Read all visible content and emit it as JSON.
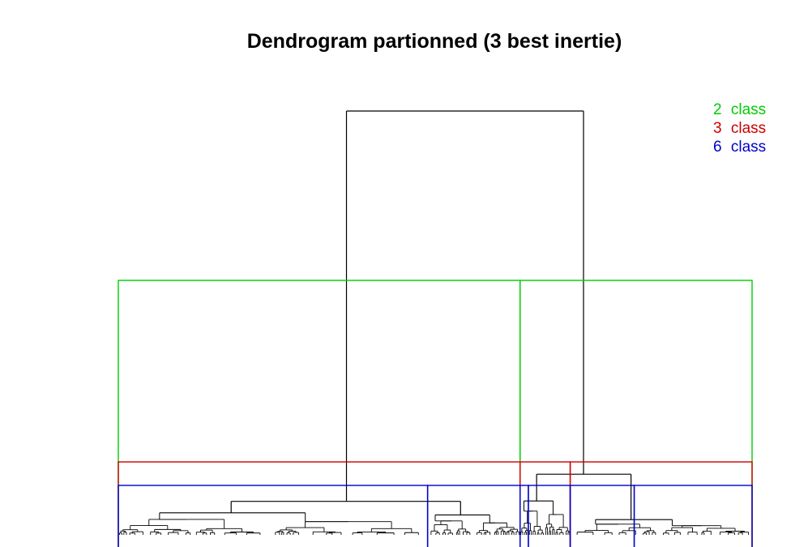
{
  "chart_data": {
    "type": "dendrogram",
    "title": "Dendrogram partionned (3 best inertie)",
    "legend": {
      "placement": "top-right",
      "entries": [
        {
          "k": "2",
          "label": "class",
          "color": "#00cc00"
        },
        {
          "k": "3",
          "label": "class",
          "color": "#cc0000"
        },
        {
          "k": "6",
          "label": "class",
          "color": "#0000cc"
        }
      ]
    },
    "partitions": [
      {
        "classes": 2,
        "cut_height": 0.36,
        "boundaries": [
          0,
          0.634,
          1
        ],
        "color": "#00cc00"
      },
      {
        "classes": 3,
        "cut_height": 0.05,
        "boundaries": [
          0,
          0.634,
          0.713,
          1
        ],
        "color": "#cc0000"
      },
      {
        "classes": 6,
        "cut_height": 0.0,
        "boundaries": [
          0,
          0.488,
          0.634,
          0.647,
          0.713,
          0.814,
          1
        ],
        "color": "#0000cc"
      }
    ],
    "merges": [
      {
        "left": 0.36,
        "right": 0.734,
        "height": 1.0
      },
      {
        "left": 0.178,
        "right": 0.54,
        "height": 0.079
      },
      {
        "left": 0.66,
        "right": 0.809,
        "height": 0.143
      },
      {
        "left": 0.065,
        "right": 0.295,
        "height": 0.052
      },
      {
        "left": 0.5,
        "right": 0.586,
        "height": 0.047
      },
      {
        "left": 0.64,
        "right": 0.686,
        "height": 0.08
      },
      {
        "left": 0.753,
        "right": 0.874,
        "height": 0.036
      }
    ],
    "axes": {
      "x_visible": false,
      "y_visible": false
    },
    "grid": false
  }
}
